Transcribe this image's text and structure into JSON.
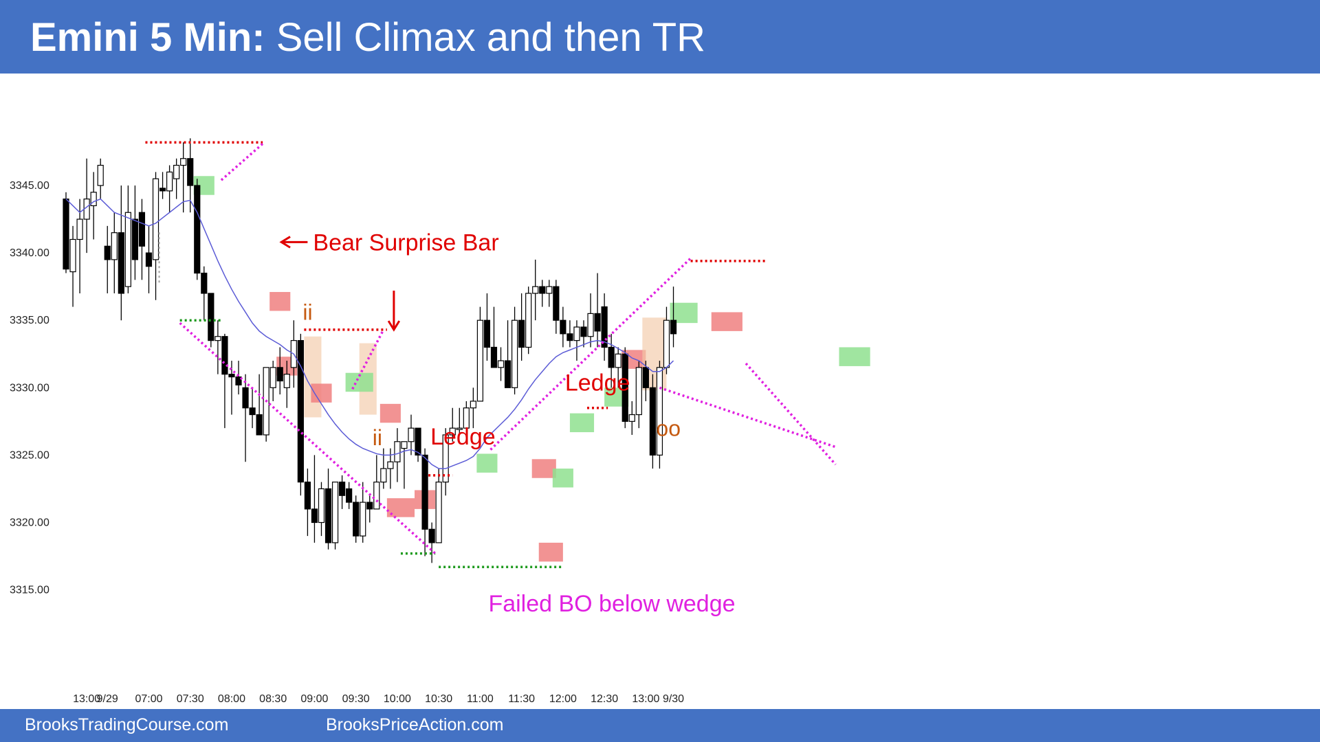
{
  "header": {
    "title_bold": "Emini 5 Min:",
    "title_rest": "Sell Climax and then TR"
  },
  "footer": {
    "left": "BrooksTradingCourse.com",
    "right": "BrooksPriceAction.com"
  },
  "colors": {
    "header_bg": "#4472C4",
    "annotation_red": "#E00000",
    "annotation_magenta": "#E020E0",
    "annotation_orange": "#C55A11",
    "ema": "#5B5BD6",
    "bull_box": "#8FE08F",
    "bear_box": "#F08080",
    "range_box": "#F2C9A8",
    "support_line": "#1E9A1E"
  },
  "chart_data": {
    "type": "candlestick",
    "title": "Emini 5 Min: Sell Climax and then TR",
    "y_ticks": [
      "3315.00",
      "3320.00",
      "3325.00",
      "3330.00",
      "3335.00",
      "3340.00",
      "3345.00"
    ],
    "ylim": [
      3312,
      3358
    ],
    "x_ticks": [
      {
        "label": "13:00",
        "bar": 3
      },
      {
        "label": "9/29",
        "bar": 6
      },
      {
        "label": "07:00",
        "bar": 12
      },
      {
        "label": "07:30",
        "bar": 18
      },
      {
        "label": "08:00",
        "bar": 24
      },
      {
        "label": "08:30",
        "bar": 30
      },
      {
        "label": "09:00",
        "bar": 36
      },
      {
        "label": "09:30",
        "bar": 42
      },
      {
        "label": "10:00",
        "bar": 48
      },
      {
        "label": "10:30",
        "bar": 54
      },
      {
        "label": "11:00",
        "bar": 60
      },
      {
        "label": "11:30",
        "bar": 66
      },
      {
        "label": "12:00",
        "bar": 72
      },
      {
        "label": "12:30",
        "bar": 78
      },
      {
        "label": "13:00",
        "bar": 84
      },
      {
        "label": "9/30",
        "bar": 88
      }
    ],
    "bars": [
      [
        3344,
        3344.5,
        3338.5,
        3338.8
      ],
      [
        3338.6,
        3342,
        3336,
        3341
      ],
      [
        3341,
        3344,
        3337,
        3342.5
      ],
      [
        3342.5,
        3347,
        3340,
        3344
      ],
      [
        3343.5,
        3346,
        3341,
        3344.5
      ],
      [
        3345,
        3347,
        3344,
        3346.5
      ],
      [
        3340.5,
        3342,
        3337,
        3339.5
      ],
      [
        3339.5,
        3343,
        3337,
        3341.5
      ],
      [
        3341.5,
        3345,
        3335,
        3337
      ],
      [
        3337.5,
        3345,
        3337,
        3343
      ],
      [
        3342.5,
        3345,
        3338,
        3339.5
      ],
      [
        3343,
        3344,
        3338,
        3340.5
      ],
      [
        3340,
        3342,
        3337,
        3339
      ],
      [
        3339.5,
        3346,
        3336.5,
        3345.5
      ],
      [
        3344.8,
        3346,
        3344,
        3344.6
      ],
      [
        3344.6,
        3346.5,
        3343,
        3346
      ],
      [
        3345.5,
        3347,
        3344,
        3346.5
      ],
      [
        3346.5,
        3348.2,
        3343,
        3347
      ],
      [
        3347,
        3348.5,
        3343,
        3345
      ],
      [
        3345,
        3345.5,
        3338,
        3338.5
      ],
      [
        3338.5,
        3339,
        3335,
        3337
      ],
      [
        3337,
        3337,
        3333,
        3333.5
      ],
      [
        3333.5,
        3335,
        3331,
        3333.8
      ],
      [
        3333.8,
        3334,
        3327,
        3331
      ],
      [
        3331,
        3332,
        3328,
        3330.8
      ],
      [
        3330.8,
        3332,
        3329.5,
        3330.2
      ],
      [
        3330,
        3331,
        3324.5,
        3328.5
      ],
      [
        3328.5,
        3330,
        3327,
        3328
      ],
      [
        3328,
        3331,
        3326.5,
        3326.5
      ],
      [
        3326.5,
        3330.5,
        3326,
        3331.5
      ],
      [
        3330,
        3332,
        3329,
        3331.5
      ],
      [
        3331.5,
        3333,
        3329.5,
        3330.5
      ],
      [
        3330,
        3332,
        3328.5,
        3331
      ],
      [
        3331.5,
        3335,
        3330,
        3333.5
      ],
      [
        3333.5,
        3334,
        3322,
        3323
      ],
      [
        3323,
        3324,
        3319,
        3321
      ],
      [
        3321,
        3325,
        3318.5,
        3320
      ],
      [
        3320,
        3323,
        3319,
        3322.5
      ],
      [
        3322.5,
        3324,
        3318,
        3318.5
      ],
      [
        3318.5,
        3323,
        3318,
        3323
      ],
      [
        3323,
        3323.5,
        3321,
        3322
      ],
      [
        3322.5,
        3323,
        3321,
        3321.5
      ],
      [
        3321.5,
        3322,
        3318.5,
        3319
      ],
      [
        3319,
        3323,
        3318.5,
        3321.5
      ],
      [
        3321.5,
        3322,
        3320,
        3321
      ],
      [
        3321,
        3325,
        3321,
        3323
      ],
      [
        3323,
        3325.5,
        3322.5,
        3324
      ],
      [
        3324,
        3325.5,
        3322.5,
        3324.5
      ],
      [
        3324.5,
        3327,
        3323,
        3326
      ],
      [
        3325.5,
        3326,
        3322.5,
        3326
      ],
      [
        3326,
        3328,
        3325,
        3327
      ],
      [
        3327,
        3327,
        3324.5,
        3325
      ],
      [
        3325,
        3325.5,
        3317.5,
        3319.5
      ],
      [
        3319.5,
        3320,
        3317,
        3318.5
      ],
      [
        3318.5,
        3324,
        3318.5,
        3323
      ],
      [
        3323,
        3327,
        3322,
        3326.5
      ],
      [
        3326.5,
        3328.5,
        3326,
        3327
      ],
      [
        3327,
        3328.5,
        3326.5,
        3327
      ],
      [
        3327,
        3329,
        3326.5,
        3328.5
      ],
      [
        3328.5,
        3330,
        3327,
        3329
      ],
      [
        3329,
        3336,
        3329,
        3335
      ],
      [
        3335,
        3337,
        3332,
        3333
      ],
      [
        3333,
        3336,
        3332,
        3331.5
      ],
      [
        3331.5,
        3333,
        3330.5,
        3332
      ],
      [
        3332,
        3335,
        3330.5,
        3330
      ],
      [
        3330,
        3336,
        3329.5,
        3335
      ],
      [
        3335,
        3337,
        3332,
        3333
      ],
      [
        3333,
        3337.5,
        3332.5,
        3337
      ],
      [
        3337,
        3339.5,
        3335,
        3337.5
      ],
      [
        3337.5,
        3338,
        3336,
        3337
      ],
      [
        3337,
        3338,
        3336,
        3337.5
      ],
      [
        3337.5,
        3338,
        3334,
        3335
      ],
      [
        3335,
        3336,
        3333,
        3334
      ],
      [
        3334,
        3335,
        3333,
        3333.5
      ],
      [
        3333.5,
        3335,
        3332,
        3334.5
      ],
      [
        3334.5,
        3335,
        3333,
        3333.8
      ],
      [
        3333.8,
        3337,
        3333,
        3335.5
      ],
      [
        3335.5,
        3338.5,
        3333,
        3334.2
      ],
      [
        3336,
        3337,
        3332,
        3333
      ],
      [
        3333,
        3334,
        3330,
        3331.5
      ],
      [
        3331.5,
        3333,
        3330,
        3332.5
      ],
      [
        3332.5,
        3333,
        3327,
        3327.5
      ],
      [
        3327.5,
        3329,
        3326.5,
        3328
      ],
      [
        3328,
        3332,
        3327,
        3331.5
      ],
      [
        3331.5,
        3332,
        3329,
        3330
      ],
      [
        3330,
        3331,
        3324,
        3325
      ],
      [
        3325,
        3332,
        3324,
        3331.5
      ],
      [
        3331.5,
        3336,
        3331,
        3335
      ],
      [
        3335,
        3337.5,
        3333,
        3334
      ]
    ],
    "ema20": [
      3344,
      3343.5,
      3343,
      3343.4,
      3343.8,
      3344,
      3343.5,
      3343,
      3342.8,
      3342.6,
      3342.4,
      3342.2,
      3342,
      3342.2,
      3342.6,
      3343,
      3343.4,
      3343.8,
      3343.9,
      3343,
      3341.8,
      3340.6,
      3339.4,
      3338.3,
      3337.3,
      3336.4,
      3335.6,
      3334.8,
      3334.2,
      3333.8,
      3333.5,
      3333.2,
      3332.8,
      3332.5,
      3331.6,
      3330.5,
      3329.6,
      3328.8,
      3328,
      3327.3,
      3326.7,
      3326.2,
      3325.8,
      3325.5,
      3325.3,
      3325.1,
      3325,
      3325,
      3325.1,
      3325.3,
      3325.4,
      3325.2,
      3324.8,
      3324.3,
      3324,
      3324,
      3324.2,
      3324.4,
      3324.6,
      3324.9,
      3325.5,
      3326.3,
      3326.8,
      3327.3,
      3327.8,
      3328.4,
      3329.1,
      3329.9,
      3330.6,
      3331.2,
      3331.8,
      3332.3,
      3332.6,
      3332.8,
      3333,
      3333.2,
      3333.4,
      3333.5,
      3333.4,
      3333.2,
      3332.9,
      3332.6,
      3332.2,
      3332,
      3331.6,
      3331.2,
      3331.2,
      3331.5,
      3332
    ],
    "shaded_boxes": [
      {
        "kind": "bull",
        "x": [
          18.5,
          21.5
        ],
        "y": [
          3344.3,
          3345.7
        ]
      },
      {
        "kind": "bear",
        "x": [
          29.5,
          32.5
        ],
        "y": [
          3335.7,
          3337.1
        ]
      },
      {
        "kind": "bear",
        "x": [
          30.5,
          33.5
        ],
        "y": [
          3330.9,
          3332.3
        ]
      },
      {
        "kind": "range",
        "x": [
          34.5,
          37
        ],
        "y": [
          3327.8,
          3333.8
        ]
      },
      {
        "kind": "bear",
        "x": [
          35.5,
          38.5
        ],
        "y": [
          3328.9,
          3330.3
        ]
      },
      {
        "kind": "range",
        "x": [
          42.5,
          45
        ],
        "y": [
          3328,
          3333.3
        ]
      },
      {
        "kind": "bull",
        "x": [
          40.5,
          44.5
        ],
        "y": [
          3329.7,
          3331.1
        ]
      },
      {
        "kind": "bear",
        "x": [
          45.5,
          48.5
        ],
        "y": [
          3327.4,
          3328.8
        ]
      },
      {
        "kind": "bear",
        "x": [
          46.5,
          50.5
        ],
        "y": [
          3320.4,
          3321.8
        ]
      },
      {
        "kind": "bear",
        "x": [
          50.5,
          53.5
        ],
        "y": [
          3321,
          3322.4
        ]
      },
      {
        "kind": "bull",
        "x": [
          59.5,
          62.5
        ],
        "y": [
          3323.7,
          3325.1
        ]
      },
      {
        "kind": "bear",
        "x": [
          67.5,
          71
        ],
        "y": [
          3323.3,
          3324.7
        ]
      },
      {
        "kind": "bear",
        "x": [
          68.5,
          72
        ],
        "y": [
          3317.1,
          3318.5
        ]
      },
      {
        "kind": "bull",
        "x": [
          70.5,
          73.5
        ],
        "y": [
          3322.6,
          3324
        ]
      },
      {
        "kind": "bull",
        "x": [
          73,
          76.5
        ],
        "y": [
          3326.7,
          3328.1
        ]
      },
      {
        "kind": "bull",
        "x": [
          78,
          81.5
        ],
        "y": [
          3328.6,
          3330
        ]
      },
      {
        "kind": "bear",
        "x": [
          80.5,
          84
        ],
        "y": [
          3331.4,
          3332.8
        ]
      },
      {
        "kind": "range",
        "x": [
          83.5,
          87
        ],
        "y": [
          3329.8,
          3335.2
        ]
      },
      {
        "kind": "bull",
        "x": [
          87.5,
          91.5
        ],
        "y": [
          3334.8,
          3336.3
        ]
      },
      {
        "kind": "bear",
        "x": [
          93.5,
          98
        ],
        "y": [
          3334.2,
          3335.6
        ]
      },
      {
        "kind": "bull",
        "x": [
          112,
          116.5
        ],
        "y": [
          3331.6,
          3333
        ]
      }
    ],
    "dotted_lines": [
      {
        "color": "red",
        "x": [
          11.5,
          28.5
        ],
        "y": [
          3348.2,
          3348.2
        ]
      },
      {
        "color": "red",
        "x": [
          34.5,
          46.5
        ],
        "y": [
          3334.3,
          3334.3
        ]
      },
      {
        "color": "red",
        "x": [
          52.5,
          56
        ],
        "y": [
          3323.5,
          3323.5
        ]
      },
      {
        "color": "red",
        "x": [
          75.5,
          78.5
        ],
        "y": [
          3328.5,
          3328.5
        ]
      },
      {
        "color": "red",
        "x": [
          90.5,
          101.5
        ],
        "y": [
          3339.4,
          3339.4
        ]
      },
      {
        "color": "green",
        "x": [
          16.5,
          22.5
        ],
        "y": [
          3335,
          3335
        ]
      },
      {
        "color": "green",
        "x": [
          48.5,
          53.5
        ],
        "y": [
          3317.7,
          3317.7
        ]
      },
      {
        "color": "green",
        "x": [
          54,
          72
        ],
        "y": [
          3316.7,
          3316.7
        ]
      },
      {
        "color": "magenta",
        "x": [
          22.5,
          28.5
        ],
        "y": [
          3345.4,
          3348.1
        ]
      },
      {
        "color": "magenta",
        "x": [
          16.5,
          53.5
        ],
        "y": [
          3334.8,
          3317.7
        ]
      },
      {
        "color": "magenta",
        "x": [
          41.5,
          46
        ],
        "y": [
          3329.9,
          3334.3
        ]
      },
      {
        "color": "magenta",
        "x": [
          61.5,
          90.5
        ],
        "y": [
          3325.4,
          3339.6
        ]
      },
      {
        "color": "magenta",
        "x": [
          86,
          111.5
        ],
        "y": [
          3330,
          3325.6
        ]
      },
      {
        "color": "magenta",
        "x": [
          98.5,
          111.5
        ],
        "y": [
          3331.8,
          3324.3
        ]
      },
      {
        "color": "grey",
        "x": [
          13.5,
          13.5
        ],
        "y": [
          3337.8,
          3341.7
        ]
      }
    ],
    "arrows": [
      {
        "from": [
          35,
          3340.8
        ],
        "to": [
          31.2,
          3340.8
        ]
      },
      {
        "from": [
          47.5,
          3337.2
        ],
        "to": [
          47.5,
          3334.3
        ]
      }
    ],
    "annotations": [
      {
        "text": "Bear Surprise Bar",
        "color": "red",
        "x": 35.8,
        "y": 3340.8,
        "size": 34
      },
      {
        "text": "ii",
        "color": "orange",
        "x": 34.3,
        "y": 3335.6,
        "size": 32
      },
      {
        "text": "ii",
        "color": "orange",
        "x": 44.4,
        "y": 3326.3,
        "size": 32
      },
      {
        "text": "Ledge",
        "color": "red",
        "x": 52.8,
        "y": 3326.4,
        "size": 34
      },
      {
        "text": "Ledge",
        "color": "red",
        "x": 72.3,
        "y": 3330.4,
        "size": 34
      },
      {
        "text": "oo",
        "color": "orange",
        "x": 85.5,
        "y": 3327,
        "size": 32
      },
      {
        "text": "Failed BO below wedge",
        "color": "magenta",
        "x": 61.2,
        "y": 3314,
        "size": 34
      }
    ]
  }
}
